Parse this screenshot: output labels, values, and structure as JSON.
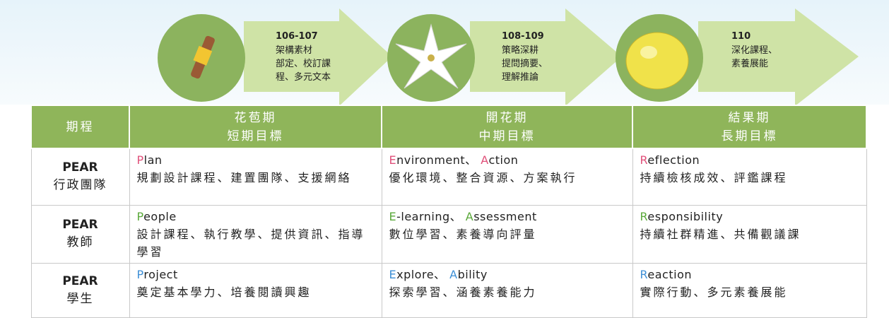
{
  "stages": [
    {
      "years": "106-107",
      "lines": [
        "架構素材",
        "部定、校訂課",
        "程、多元文本"
      ]
    },
    {
      "years": "108-109",
      "lines": [
        "策略深耕",
        "提問摘要、",
        "理解推論"
      ]
    },
    {
      "years": "110",
      "lines": [
        "深化課程、",
        "素養展能"
      ]
    }
  ],
  "table": {
    "header": {
      "label": "期程",
      "columns": [
        [
          "花苞期",
          "短期目標"
        ],
        [
          "開花期",
          "中期目標"
        ],
        [
          "結果期",
          "長期目標"
        ]
      ]
    },
    "rows": [
      {
        "group": "PEAR",
        "role": "行政團隊",
        "accent_color": "#e0507a",
        "cells": [
          {
            "en": "Plan",
            "zh": "規劃設計課程、建置團隊、支援網絡"
          },
          {
            "en": "Environment、 Action",
            "zh": "優化環境、整合資源、方案執行"
          },
          {
            "en": "Reflection",
            "zh": "持續檢核成效、評鑑課程"
          }
        ]
      },
      {
        "group": "PEAR",
        "role": "教師",
        "accent_color": "#5aa83a",
        "cells": [
          {
            "en": "People",
            "zh": "設計課程、執行教學、提供資訊、指導學習"
          },
          {
            "en": "E-learning、 Assessment",
            "zh": "數位學習、素養導向評量"
          },
          {
            "en": "Responsibility",
            "zh": "持續社群精進、共備觀議課"
          }
        ]
      },
      {
        "group": "PEAR",
        "role": "學生",
        "accent_color": "#3d8fd6",
        "cells": [
          {
            "en": "Project",
            "zh": "奠定基本學力、培養閱讀興趣"
          },
          {
            "en": "Explore、 Ability",
            "zh": "探索學習、涵養素養能力"
          },
          {
            "en": "Reaction",
            "zh": "實際行動、多元素養展能"
          }
        ]
      }
    ]
  }
}
